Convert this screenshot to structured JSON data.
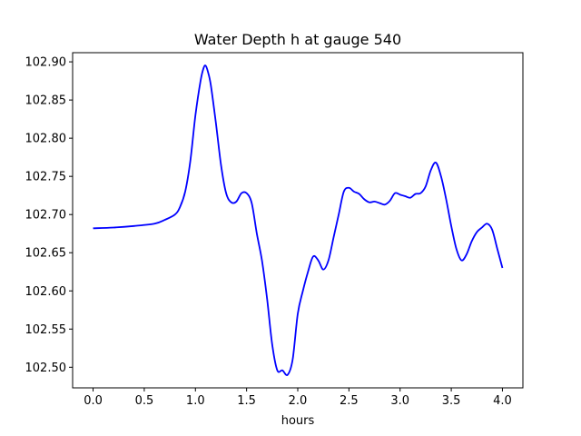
{
  "chart_data": {
    "type": "line",
    "title": "Water Depth h at gauge 540",
    "xlabel": "hours",
    "ylabel": "",
    "xlim": [
      -0.2,
      4.2
    ],
    "ylim": [
      102.473,
      102.912
    ],
    "grid": false,
    "xticks": [
      0.0,
      0.5,
      1.0,
      1.5,
      2.0,
      2.5,
      3.0,
      3.5,
      4.0
    ],
    "xtick_labels": [
      "0.0",
      "0.5",
      "1.0",
      "1.5",
      "2.0",
      "2.5",
      "3.0",
      "3.5",
      "4.0"
    ],
    "yticks": [
      102.5,
      102.55,
      102.6,
      102.65,
      102.7,
      102.75,
      102.8,
      102.85,
      102.9
    ],
    "ytick_labels": [
      "102.50",
      "102.55",
      "102.60",
      "102.65",
      "102.70",
      "102.75",
      "102.80",
      "102.85",
      "102.90"
    ],
    "series": [
      {
        "color": "#0000ff",
        "x": [
          0.0,
          0.2,
          0.4,
          0.6,
          0.7,
          0.8,
          0.85,
          0.9,
          0.95,
          1.0,
          1.05,
          1.08,
          1.1,
          1.12,
          1.15,
          1.2,
          1.25,
          1.3,
          1.35,
          1.4,
          1.45,
          1.5,
          1.55,
          1.6,
          1.65,
          1.7,
          1.75,
          1.8,
          1.85,
          1.9,
          1.95,
          2.0,
          2.05,
          2.1,
          2.15,
          2.2,
          2.25,
          2.3,
          2.35,
          2.4,
          2.45,
          2.5,
          2.55,
          2.6,
          2.65,
          2.7,
          2.75,
          2.8,
          2.85,
          2.9,
          2.95,
          3.0,
          3.05,
          3.1,
          3.15,
          3.2,
          3.25,
          3.3,
          3.35,
          3.4,
          3.45,
          3.5,
          3.55,
          3.6,
          3.65,
          3.7,
          3.75,
          3.8,
          3.85,
          3.9,
          3.95,
          4.0
        ],
        "y": [
          102.682,
          102.683,
          102.685,
          102.688,
          102.693,
          102.7,
          102.71,
          102.73,
          102.77,
          102.83,
          102.875,
          102.892,
          102.895,
          102.888,
          102.87,
          102.82,
          102.765,
          102.728,
          102.716,
          102.717,
          102.728,
          102.728,
          102.715,
          102.675,
          102.64,
          102.59,
          102.53,
          102.496,
          102.496,
          102.49,
          102.51,
          102.57,
          102.6,
          102.625,
          102.645,
          102.64,
          102.628,
          102.64,
          102.67,
          102.7,
          102.73,
          102.735,
          102.73,
          102.727,
          102.72,
          102.716,
          102.717,
          102.715,
          102.713,
          102.718,
          102.728,
          102.726,
          102.724,
          102.722,
          102.727,
          102.728,
          102.737,
          102.758,
          102.768,
          102.75,
          102.72,
          102.685,
          102.655,
          102.64,
          102.648,
          102.665,
          102.677,
          102.683,
          102.688,
          102.68,
          102.655,
          102.63
        ]
      }
    ]
  }
}
